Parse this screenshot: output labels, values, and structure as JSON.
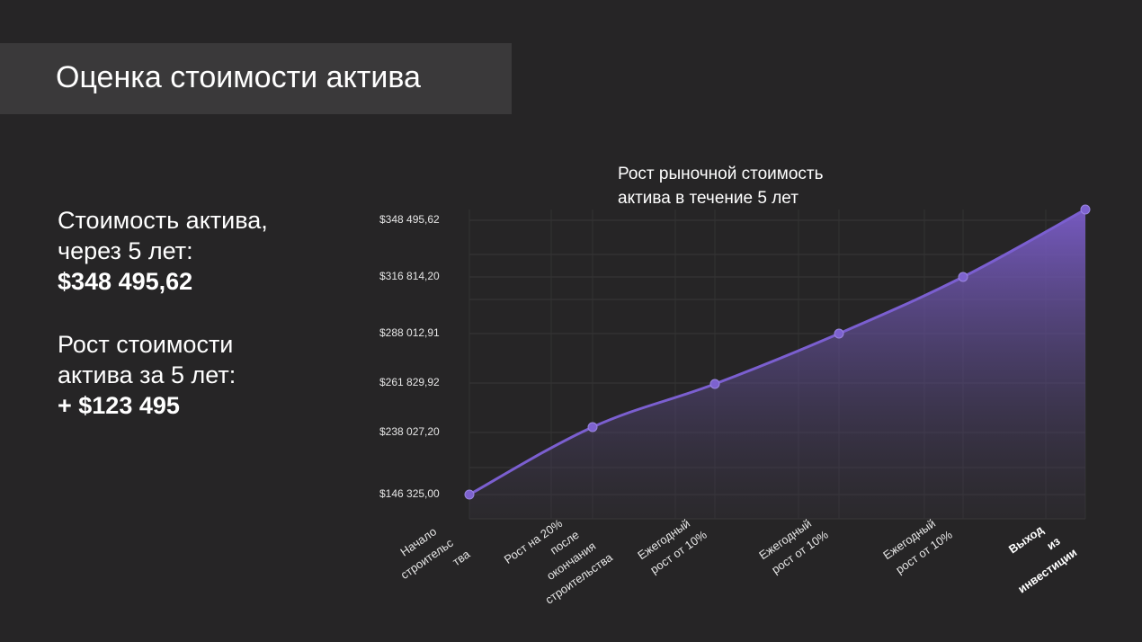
{
  "header": {
    "title": "Оценка стоимости актива"
  },
  "summary": {
    "value_label_line1": "Стоимость актива,",
    "value_label_line2": "через 5 лет:",
    "value_amount": "$348 495,62",
    "growth_label_line1": "Рост стоимости",
    "growth_label_line2": "актива за 5 лет:",
    "growth_amount": "+ $123 495"
  },
  "colors": {
    "background": "#262526",
    "title_band": "#3a393a",
    "line": "#7b5fd0",
    "area_top": "#7a5cc8",
    "grid": "#3b3a3b"
  },
  "chart_data": {
    "type": "area",
    "title_lines": [
      "Рост рыночной стоимость",
      "актива в течение 5 лет"
    ],
    "categories": [
      [
        "Начало",
        "строительс",
        "тва"
      ],
      [
        "Рост на 20%",
        "после",
        "окончания",
        "строительства"
      ],
      [
        "Ежегодный",
        "рост от 10%"
      ],
      [
        "Ежегодный",
        "рост от 10%"
      ],
      [
        "Ежегодный",
        "рост от 10%"
      ],
      [
        "Выход",
        "из",
        "инвестиции"
      ]
    ],
    "category_bold": [
      false,
      false,
      false,
      false,
      false,
      true
    ],
    "values": [
      146325.0,
      238027.2,
      261829.92,
      288012.91,
      316814.2,
      348495.62
    ],
    "y_tick_labels": [
      "$146 325,00",
      "$238 027,20",
      "$261 829,92",
      "$288 012,91",
      "$316 814,20",
      "$348 495,62"
    ],
    "grid": true,
    "markers": true,
    "xlabel": "",
    "ylabel": ""
  }
}
